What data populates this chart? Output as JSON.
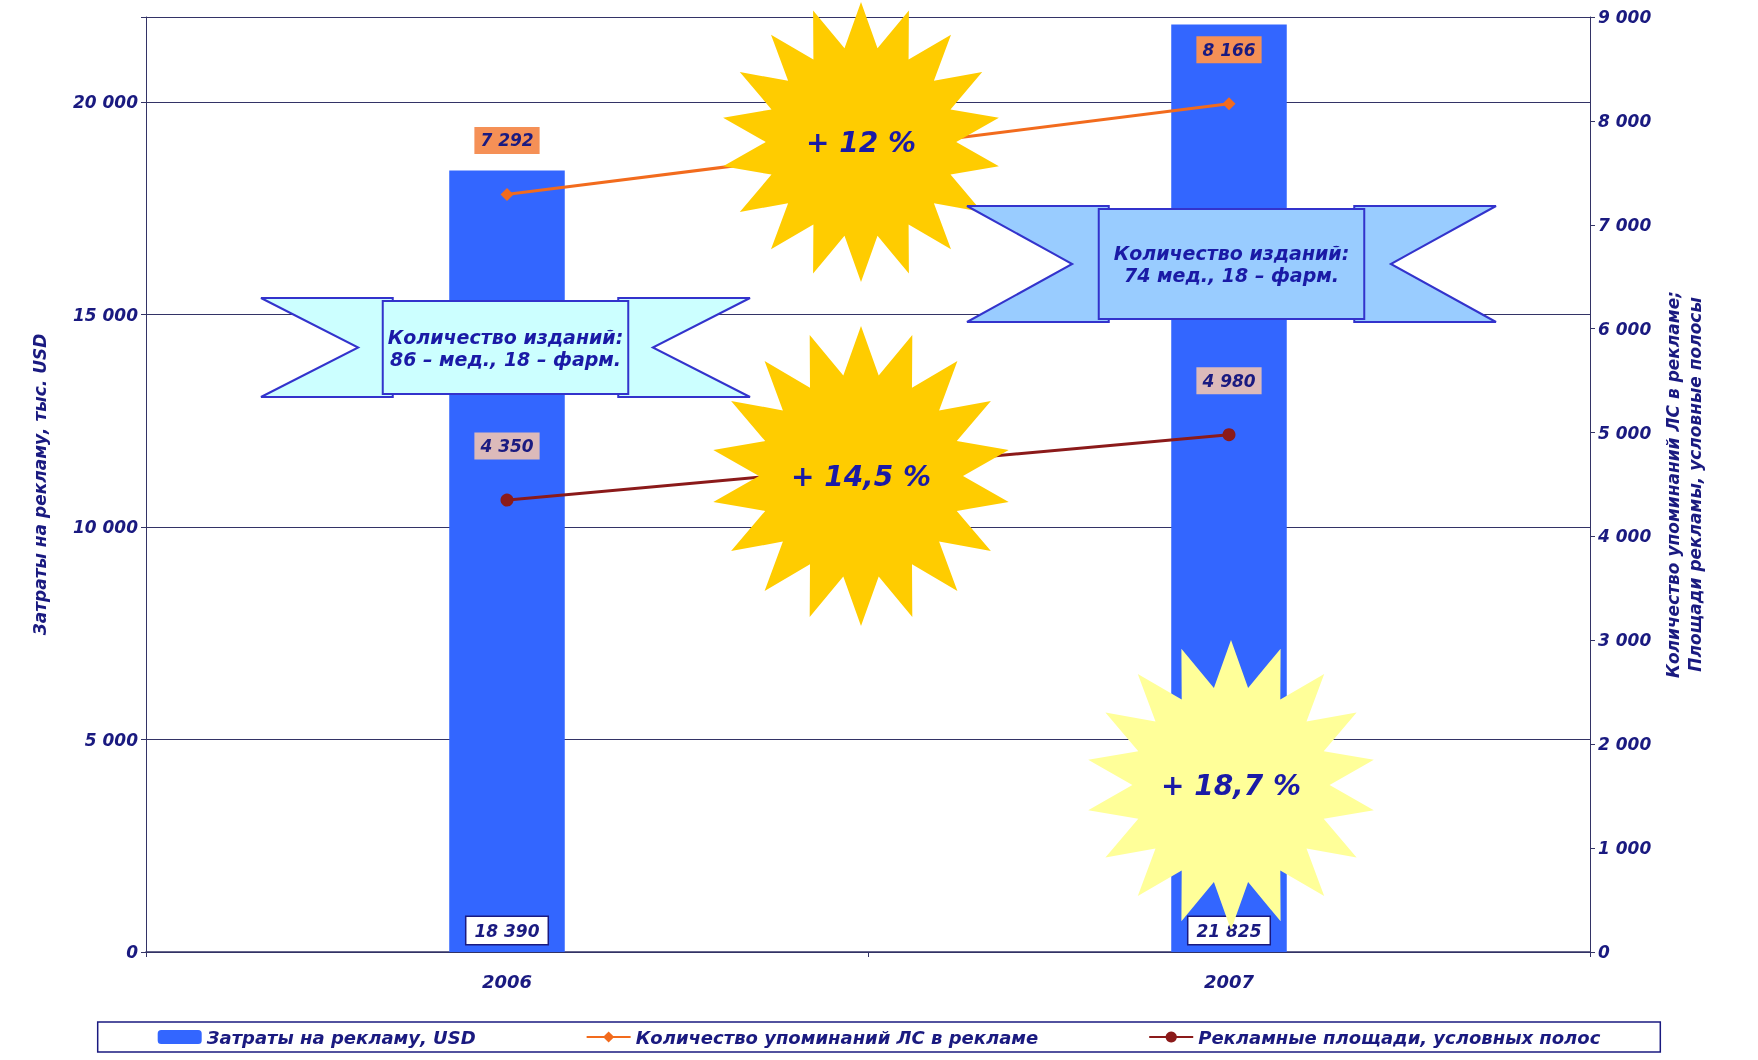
{
  "chart_data": {
    "type": "bar",
    "categories": [
      "2006",
      "2007"
    ],
    "ylabel": "Затраты на рекламу, тыс. USD",
    "y2label": "Количество упоминаний ЛС в рекламе;\nПлощади рекламы, условные полосы",
    "ylim": [
      0,
      22000
    ],
    "yticks": [
      0,
      {
        "value": 5000,
        "label": "5 000"
      },
      {
        "value": 10000,
        "label": "10 000"
      },
      {
        "value": 15000,
        "label": "15 000"
      },
      {
        "value": 20000,
        "label": "20 000"
      }
    ],
    "y2lim": [
      0,
      9000
    ],
    "y2ticks": [
      0,
      {
        "value": 1000,
        "label": "1 000"
      },
      {
        "value": 2000,
        "label": "2 000"
      },
      {
        "value": 3000,
        "label": "3 000"
      },
      {
        "value": 4000,
        "label": "4 000"
      },
      {
        "value": 5000,
        "label": "5 000"
      },
      {
        "value": 6000,
        "label": "6 000"
      },
      {
        "value": 7000,
        "label": "7 000"
      },
      {
        "value": 8000,
        "label": "8 000"
      },
      {
        "value": 9000,
        "label": "9 000"
      }
    ],
    "series": [
      {
        "name": "Затраты на рекламу, USD",
        "color": "#3366ff",
        "values": [
          18390,
          21825
        ],
        "value_labels": [
          "18 390",
          "21 825"
        ]
      },
      {
        "name": "Количество упоминаний ЛС в рекламе",
        "type": "line",
        "axis": "y2",
        "color": "#f26b1d",
        "marker": "diamond",
        "values": [
          7292,
          8166
        ],
        "value_labels": [
          "7 292",
          "8 166"
        ]
      },
      {
        "name": "Рекламные площади, условных полос",
        "type": "line",
        "axis": "y2",
        "color": "#8b1a1a",
        "marker": "circle",
        "values": [
          4350,
          4980
        ],
        "value_labels": [
          "4 350",
          "4 980"
        ]
      }
    ],
    "annotations": [
      "+ 12 %",
      "+ 14,5 %",
      "+ 18,7 %",
      "Количество изданий: 86 – мед., 18 – фарм.",
      "Количество изданий: 74 мед., 18 – фарм."
    ],
    "grid": "y",
    "legend": "bottom"
  }
}
